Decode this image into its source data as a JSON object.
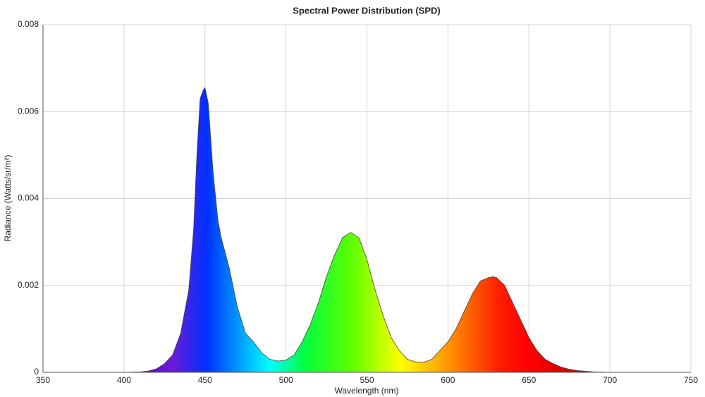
{
  "chart_data": {
    "type": "area",
    "title": "Spectral Power Distribution (SPD)",
    "x_label": "Wavelength (nm)",
    "y_label": "Radiance (Watts/sr/m²)",
    "x": [
      350,
      360,
      370,
      380,
      390,
      400,
      405,
      410,
      415,
      420,
      425,
      430,
      435,
      440,
      443,
      445,
      447,
      449,
      450,
      452,
      455,
      458,
      460,
      465,
      470,
      475,
      480,
      485,
      490,
      495,
      500,
      505,
      510,
      515,
      520,
      525,
      530,
      535,
      540,
      545,
      550,
      555,
      560,
      565,
      570,
      575,
      580,
      585,
      590,
      595,
      600,
      605,
      610,
      615,
      620,
      625,
      628,
      630,
      635,
      640,
      645,
      650,
      655,
      660,
      665,
      670,
      675,
      680,
      690,
      700,
      710,
      720,
      730,
      740,
      750
    ],
    "values": [
      0,
      0,
      0,
      0,
      0,
      0,
      5e-06,
      1e-05,
      3e-05,
      8e-05,
      0.0002,
      0.0004,
      0.0009,
      0.0019,
      0.0033,
      0.005,
      0.0063,
      0.0065,
      0.00655,
      0.0062,
      0.0046,
      0.0035,
      0.0031,
      0.0024,
      0.0015,
      0.0009,
      0.0007,
      0.00045,
      0.0003,
      0.00026,
      0.00028,
      0.0004,
      0.0007,
      0.0011,
      0.0016,
      0.0022,
      0.0027,
      0.0031,
      0.00322,
      0.0031,
      0.0026,
      0.0019,
      0.0013,
      0.0008,
      0.0005,
      0.0003,
      0.00024,
      0.00023,
      0.0003,
      0.0005,
      0.0007,
      0.001,
      0.0014,
      0.0018,
      0.0021,
      0.00218,
      0.0022,
      0.00218,
      0.002,
      0.0016,
      0.0012,
      0.0008,
      0.0005,
      0.0003,
      0.0002,
      0.00012,
      7e-05,
      4e-05,
      1e-05,
      0,
      0,
      0,
      0,
      0,
      0
    ],
    "xlim": [
      350,
      750
    ],
    "xticks": [
      350,
      400,
      450,
      500,
      550,
      600,
      650,
      700,
      750
    ],
    "ylim": [
      0,
      0.008
    ],
    "yticks": [
      0,
      0.002,
      0.004,
      0.006,
      0.008
    ],
    "grid": true,
    "line_color": "#444444"
  }
}
